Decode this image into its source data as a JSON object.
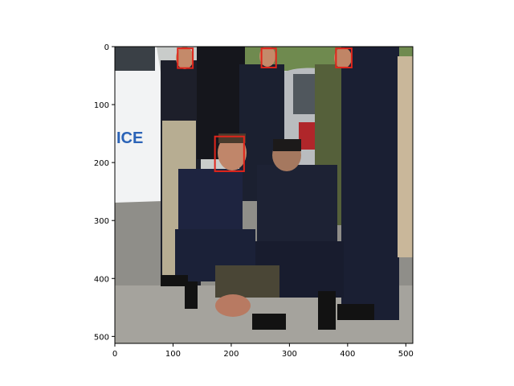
{
  "figure": {
    "x_ticks": [
      "0",
      "100",
      "200",
      "300",
      "400",
      "500"
    ],
    "y_ticks": [
      "0",
      "100",
      "200",
      "300",
      "400",
      "500"
    ],
    "x_range": [
      0,
      512
    ],
    "y_range": [
      0,
      512
    ],
    "y_inverted": true
  },
  "image": {
    "description_tag": "photo",
    "background_text": "ICE",
    "palette": {
      "sky": "#d7dde0",
      "van": "#f2f2f2",
      "road": "#8a8a86",
      "uniform": "#1b2138",
      "olive": "#5a6236",
      "box": "#e0251b"
    }
  },
  "face_boxes": [
    {
      "x": 108,
      "y": 3,
      "w": 26,
      "h": 34
    },
    {
      "x": 252,
      "y": 3,
      "w": 25,
      "h": 33
    },
    {
      "x": 380,
      "y": 3,
      "w": 27,
      "h": 33
    },
    {
      "x": 172,
      "y": 155,
      "w": 50,
      "h": 60
    }
  ]
}
